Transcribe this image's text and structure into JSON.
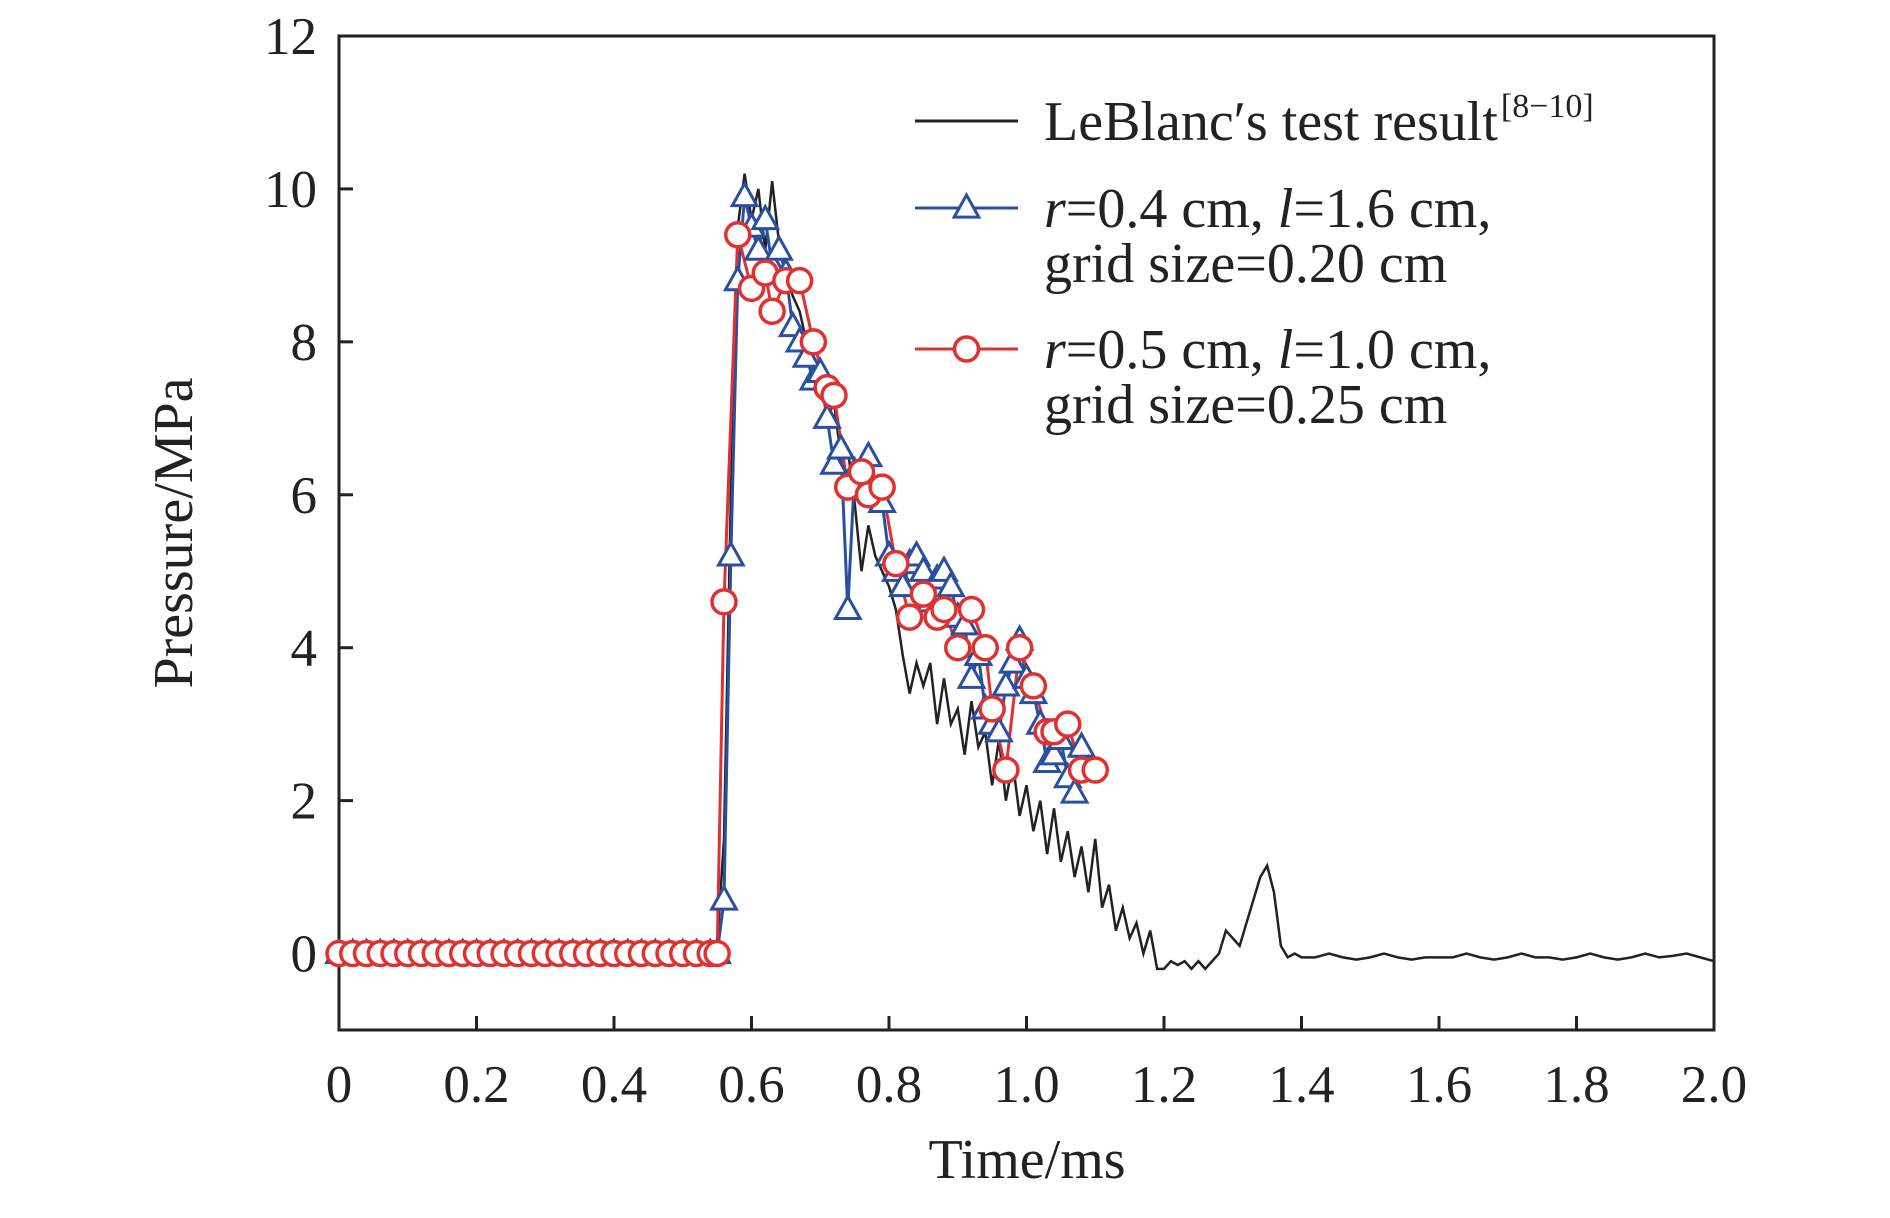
{
  "chart_data": {
    "type": "line",
    "x_label": "Time/ms",
    "y_label": "Pressure/MPa",
    "xlim": [
      0,
      2.0
    ],
    "ylim": [
      -1,
      12
    ],
    "xticks": [
      0,
      0.2,
      0.4,
      0.6,
      0.8,
      {
        "value": 1.0,
        "label": "1.0"
      },
      1.2,
      1.4,
      1.6,
      1.8,
      {
        "value": 2.0,
        "label": "2.0"
      }
    ],
    "yticks": [
      0,
      2,
      4,
      6,
      8,
      10,
      12
    ],
    "grid": false,
    "legend": "upper right",
    "series": [
      {
        "name": "LeBlanc′s test result",
        "reference": "[8−10]",
        "color": "#222222",
        "marker": "none",
        "x": [
          0,
          0.02,
          0.04,
          0.06,
          0.08,
          0.1,
          0.12,
          0.14,
          0.16,
          0.18,
          0.2,
          0.22,
          0.24,
          0.26,
          0.28,
          0.3,
          0.32,
          0.34,
          0.36,
          0.38,
          0.4,
          0.42,
          0.44,
          0.46,
          0.48,
          0.5,
          0.52,
          0.54,
          0.55,
          0.56,
          0.57,
          0.58,
          0.59,
          0.6,
          0.61,
          0.62,
          0.63,
          0.64,
          0.65,
          0.66,
          0.67,
          0.68,
          0.69,
          0.7,
          0.71,
          0.72,
          0.73,
          0.74,
          0.75,
          0.76,
          0.77,
          0.78,
          0.79,
          0.8,
          0.81,
          0.82,
          0.83,
          0.84,
          0.85,
          0.86,
          0.87,
          0.88,
          0.89,
          0.9,
          0.91,
          0.92,
          0.93,
          0.94,
          0.95,
          0.96,
          0.97,
          0.98,
          0.99,
          1,
          1.01,
          1.02,
          1.03,
          1.04,
          1.05,
          1.06,
          1.07,
          1.08,
          1.09,
          1.1,
          1.11,
          1.12,
          1.13,
          1.14,
          1.15,
          1.16,
          1.17,
          1.18,
          1.19,
          1.2,
          1.21,
          1.22,
          1.23,
          1.24,
          1.25,
          1.26,
          1.27,
          1.28,
          1.29,
          1.3,
          1.31,
          1.32,
          1.33,
          1.34,
          1.35,
          1.36,
          1.37,
          1.38,
          1.39,
          1.4,
          1.42,
          1.44,
          1.46,
          1.48,
          1.5,
          1.52,
          1.54,
          1.56,
          1.58,
          1.6,
          1.62,
          1.64,
          1.66,
          1.68,
          1.7,
          1.72,
          1.74,
          1.76,
          1.78,
          1.8,
          1.82,
          1.84,
          1.86,
          1.88,
          1.9,
          1.92,
          1.94,
          1.96,
          1.98,
          2
        ],
        "values": [
          0,
          0.05,
          0,
          0.08,
          0,
          0.05,
          0.1,
          0,
          0.05,
          0,
          0.08,
          0,
          0.05,
          0,
          0.1,
          0,
          0.05,
          0,
          0.08,
          0,
          0.05,
          0.1,
          0,
          0.05,
          0,
          0.08,
          0,
          0.05,
          0.1,
          1.5,
          6,
          9.5,
          10.2,
          9.6,
          10,
          9.2,
          10.1,
          9.3,
          8.9,
          8.6,
          8.4,
          8,
          7.6,
          7.5,
          7,
          7.2,
          6.5,
          6.6,
          5.9,
          5,
          5.6,
          5.2,
          5,
          4.8,
          4.5,
          3.9,
          3.4,
          3.8,
          3.5,
          3.8,
          3,
          3.6,
          3,
          3.2,
          2.6,
          3.3,
          2.7,
          2.9,
          2.2,
          2.8,
          2,
          2.5,
          1.8,
          2.2,
          1.6,
          2,
          1.3,
          1.9,
          1.2,
          1.6,
          1,
          1.4,
          0.8,
          1.5,
          0.6,
          0.9,
          0.3,
          0.6,
          0.2,
          0.4,
          0,
          0.3,
          -0.2,
          -0.2,
          -0.1,
          -0.15,
          -0.1,
          -0.2,
          -0.1,
          -0.2,
          -0.1,
          0,
          0.3,
          0.2,
          0.1,
          0.4,
          0.7,
          1,
          1.15,
          0.8,
          0.1,
          -0.05,
          0,
          -0.05,
          -0.05,
          0,
          -0.05,
          -0.08,
          -0.05,
          0,
          -0.05,
          -0.08,
          -0.05,
          -0.05,
          -0.05,
          0,
          -0.05,
          -0.08,
          -0.05,
          0,
          -0.05,
          -0.05,
          -0.08,
          -0.05,
          0,
          -0.05,
          -0.08,
          -0.05,
          0,
          -0.05,
          -0.03,
          0,
          -0.05,
          -0.1
        ]
      },
      {
        "name": "r=0.4 cm, l=1.6 cm, grid size=0.20 cm",
        "color": "#2b4fa0",
        "marker": "triangle",
        "x": [
          0,
          0.02,
          0.04,
          0.06,
          0.08,
          0.1,
          0.12,
          0.14,
          0.16,
          0.18,
          0.2,
          0.22,
          0.24,
          0.26,
          0.28,
          0.3,
          0.32,
          0.34,
          0.36,
          0.38,
          0.4,
          0.42,
          0.44,
          0.46,
          0.48,
          0.5,
          0.52,
          0.54,
          0.55,
          0.56,
          0.57,
          0.58,
          0.59,
          0.6,
          0.61,
          0.62,
          0.63,
          0.64,
          0.65,
          0.66,
          0.67,
          0.68,
          0.69,
          0.7,
          0.71,
          0.72,
          0.73,
          0.74,
          0.75,
          0.76,
          0.77,
          0.78,
          0.79,
          0.8,
          0.81,
          0.82,
          0.83,
          0.84,
          0.85,
          0.86,
          0.87,
          0.88,
          0.89,
          0.9,
          0.91,
          0.92,
          0.93,
          0.94,
          0.95,
          0.96,
          0.97,
          0.98,
          0.99,
          1,
          1.01,
          1.02,
          1.03,
          1.04,
          1.05,
          1.06,
          1.07,
          1.08,
          1.09
        ],
        "values": [
          0,
          0,
          0,
          0,
          0,
          0,
          0,
          0,
          0,
          0,
          0,
          0,
          0,
          0,
          0,
          0,
          0,
          0,
          0,
          0,
          0,
          0,
          0,
          0,
          0,
          0,
          0,
          0,
          0,
          0.7,
          5.2,
          8.8,
          9.9,
          9.5,
          9.2,
          9.6,
          9,
          9.2,
          8.9,
          8.2,
          8,
          7.8,
          7.5,
          7.6,
          7,
          6.4,
          6.6,
          4.5,
          6.3,
          6.1,
          6.5,
          6,
          5.9,
          5.2,
          5,
          4.8,
          5.1,
          5.2,
          5,
          4.6,
          4.9,
          5,
          4.8,
          4.4,
          4.3,
          3.6,
          3.9,
          3.2,
          3,
          2.9,
          3.5,
          3.8,
          4.1,
          3.6,
          3.4,
          3,
          2.5,
          2.6,
          2.8,
          2.3,
          2.1,
          2.7,
          2.4
        ]
      },
      {
        "name": "r=0.5 cm, l=1.0 cm, grid size=0.25 cm",
        "color": "#e03030",
        "marker": "circle",
        "x": [
          0,
          0.02,
          0.04,
          0.06,
          0.08,
          0.1,
          0.12,
          0.14,
          0.16,
          0.18,
          0.2,
          0.22,
          0.24,
          0.26,
          0.28,
          0.3,
          0.32,
          0.34,
          0.36,
          0.38,
          0.4,
          0.42,
          0.44,
          0.46,
          0.48,
          0.5,
          0.52,
          0.54,
          0.55,
          0.56,
          0.58,
          0.6,
          0.62,
          0.63,
          0.65,
          0.67,
          0.69,
          0.71,
          0.72,
          0.74,
          0.76,
          0.77,
          0.79,
          0.81,
          0.83,
          0.85,
          0.87,
          0.88,
          0.9,
          0.92,
          0.94,
          0.95,
          0.97,
          0.99,
          1.01,
          1.03,
          1.04,
          1.06,
          1.08,
          1.1
        ],
        "values": [
          0,
          0,
          0,
          0,
          0,
          0,
          0,
          0,
          0,
          0,
          0,
          0,
          0,
          0,
          0,
          0,
          0,
          0,
          0,
          0,
          0,
          0,
          0,
          0,
          0,
          0,
          0,
          0,
          0,
          4.6,
          9.4,
          8.7,
          8.9,
          8.4,
          8.8,
          8.8,
          8,
          7.4,
          7.3,
          6.1,
          6.3,
          6,
          6.1,
          5.1,
          4.4,
          4.7,
          4.4,
          4.5,
          4,
          4.5,
          4,
          3.2,
          2.4,
          4,
          3.5,
          2.9,
          2.9,
          3,
          2.4,
          2.4
        ]
      }
    ]
  }
}
